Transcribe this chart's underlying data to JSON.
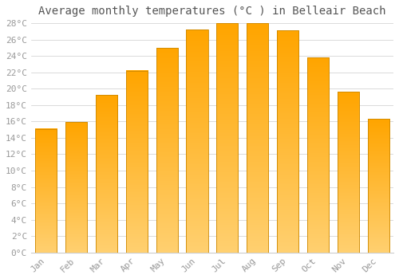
{
  "title": "Average monthly temperatures (°C ) in Belleair Beach",
  "months": [
    "Jan",
    "Feb",
    "Mar",
    "Apr",
    "May",
    "Jun",
    "Jul",
    "Aug",
    "Sep",
    "Oct",
    "Nov",
    "Dec"
  ],
  "values": [
    15.1,
    15.9,
    19.2,
    22.2,
    25.0,
    27.2,
    28.0,
    28.0,
    27.1,
    23.8,
    19.6,
    16.3
  ],
  "bar_color_top": "#FFA500",
  "bar_color_bottom": "#FFD070",
  "bar_edge_color": "#CC8800",
  "background_color": "#FFFFFF",
  "grid_color": "#CCCCCC",
  "tick_label_color": "#999999",
  "title_color": "#555555",
  "ylim": [
    0,
    28
  ],
  "ytick_step": 2,
  "title_fontsize": 10,
  "tick_fontsize": 8
}
